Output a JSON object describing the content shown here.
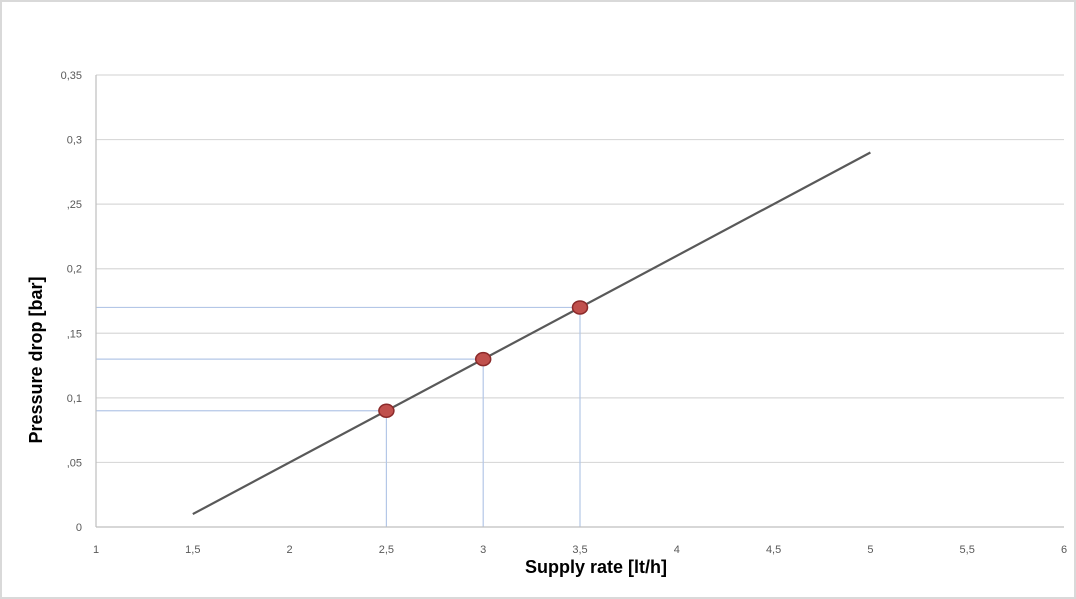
{
  "chart_data": {
    "type": "line",
    "title": "",
    "xlabel": "Supply rate [lt/h]",
    "ylabel": "Pressure drop [bar]",
    "xlim": [
      1,
      6
    ],
    "ylim": [
      0,
      0.35
    ],
    "x_ticks": [
      "1",
      "1,5",
      "2",
      "2,5",
      "3",
      "3,5",
      "4",
      "4,5",
      "5",
      "5,5",
      "6"
    ],
    "y_ticks": [
      "0",
      ",05",
      "0,1",
      ",15",
      "0,2",
      ",25",
      "0,3",
      "0,35"
    ],
    "x_tick_values": [
      1,
      1.5,
      2,
      2.5,
      3,
      3.5,
      4,
      4.5,
      5,
      5.5,
      6
    ],
    "y_tick_values": [
      0,
      0.05,
      0.1,
      0.15,
      0.2,
      0.25,
      0.3,
      0.35
    ],
    "grid": true,
    "legend": "none",
    "series": [
      {
        "x": [
          1.5,
          5
        ],
        "y": [
          0.01,
          0.29
        ],
        "color": "#595959"
      }
    ],
    "markers": {
      "x": [
        2.5,
        3,
        3.5
      ],
      "y": [
        0.09,
        0.13,
        0.17
      ],
      "color": "#c0504d",
      "edge_color": "#8b2a2a"
    },
    "reference_line_color": "#b4c7e7"
  }
}
